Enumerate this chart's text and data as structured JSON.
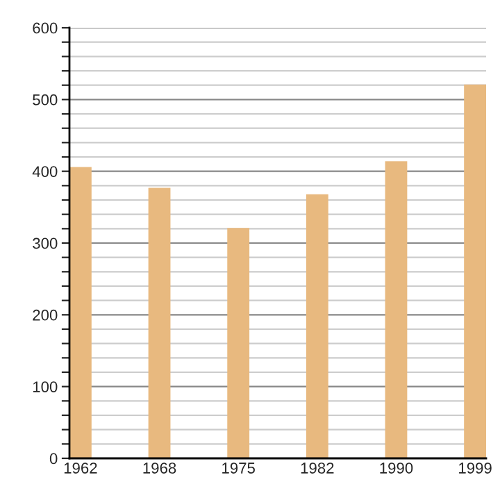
{
  "chart_data": {
    "type": "bar",
    "categories": [
      "1962",
      "1968",
      "1975",
      "1982",
      "1990",
      "1999"
    ],
    "values": [
      406,
      377,
      321,
      368,
      414,
      521
    ],
    "color": "#e8b97f",
    "ylim": [
      0,
      600
    ],
    "yticks": [
      0,
      {
        "value": 20,
        "label": null
      },
      {
        "value": 40,
        "label": null
      },
      {
        "value": 60,
        "label": null
      },
      {
        "value": 80,
        "label": null
      },
      100,
      {
        "value": 120,
        "label": null
      },
      {
        "value": 140,
        "label": null
      },
      {
        "value": 160,
        "label": null
      },
      {
        "value": 180,
        "label": null
      },
      200,
      {
        "value": 220,
        "label": null
      },
      {
        "value": 240,
        "label": null
      },
      {
        "value": 260,
        "label": null
      },
      {
        "value": 280,
        "label": null
      },
      300,
      {
        "value": 320,
        "label": null
      },
      {
        "value": 340,
        "label": null
      },
      {
        "value": 360,
        "label": null
      },
      {
        "value": 380,
        "label": null
      },
      400,
      {
        "value": 420,
        "label": null
      },
      {
        "value": 440,
        "label": null
      },
      {
        "value": 460,
        "label": null
      },
      {
        "value": 480,
        "label": null
      },
      500,
      {
        "value": 520,
        "label": null
      },
      {
        "value": 540,
        "label": null
      },
      {
        "value": 560,
        "label": null
      },
      {
        "value": 580,
        "label": null
      },
      600
    ],
    "grid": "y"
  }
}
